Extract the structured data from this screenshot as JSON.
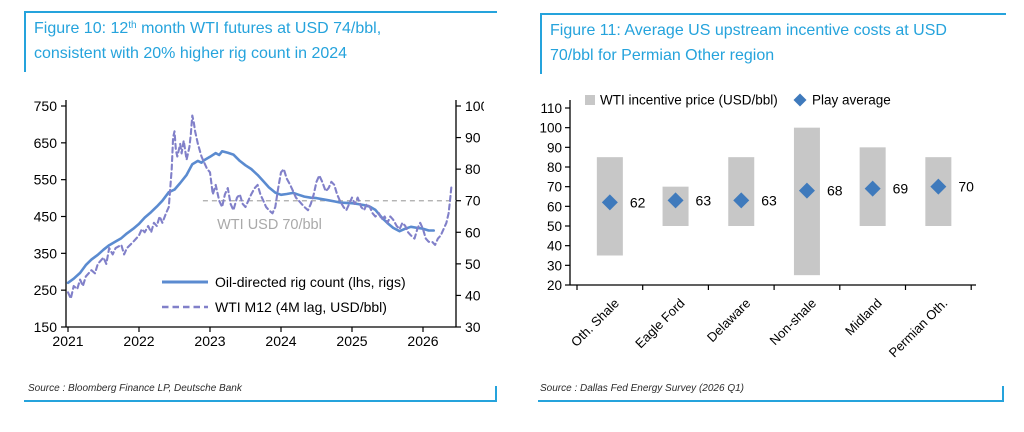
{
  "accent_color": "#25a3dc",
  "figures": [
    {
      "id": "figure-10",
      "title_line1_pre": "Figure 10: 12",
      "title_line1_sup": "th",
      "title_line1_post": " month WTI futures at USD 74/bbl,",
      "title_line2": "consistent with 20% higher rig count in 2024",
      "source": "Source : Bloomberg Finance LP, Deutsche Bank"
    },
    {
      "id": "figure-11",
      "title_line1_pre": "Figure 11: Average US upstream incentive costs at USD",
      "title_line1_sup": "",
      "title_line1_post": "",
      "title_line2": "70/bbl for Permian Other region",
      "source": "Source : Dallas Fed Energy Survey (2026 Q1)"
    }
  ],
  "chart_data": [
    {
      "type": "line",
      "title": "12th month WTI futures vs US oil-directed rig count",
      "x_ticks": [
        2021,
        2022,
        2023,
        2024,
        2025,
        2026
      ],
      "left_axis": {
        "label": "rigs",
        "range": [
          150,
          750
        ],
        "ticks": [
          750,
          650,
          550,
          450,
          350,
          250,
          150
        ]
      },
      "right_axis": {
        "label": "USD/bbl",
        "range": [
          30,
          100
        ],
        "ticks": [
          100,
          90,
          80,
          70,
          60,
          50,
          40,
          30
        ]
      },
      "grid": false,
      "legend_position": "inside-bottom",
      "reference_line": {
        "axis": "right",
        "value": 70,
        "start_x": 2022.9,
        "label": "WTI USD 70/bbl",
        "color": "#a9a9a9"
      },
      "series": [
        {
          "name": "Oil-directed rig count (lhs, rigs)",
          "axis": "left",
          "style": "solid",
          "color": "#5b8bd0",
          "points": [
            [
              2021.0,
              270
            ],
            [
              2021.08,
              281
            ],
            [
              2021.17,
              297
            ],
            [
              2021.25,
              318
            ],
            [
              2021.33,
              333
            ],
            [
              2021.42,
              346
            ],
            [
              2021.5,
              360
            ],
            [
              2021.58,
              372
            ],
            [
              2021.67,
              382
            ],
            [
              2021.75,
              391
            ],
            [
              2021.83,
              404
            ],
            [
              2021.92,
              417
            ],
            [
              2022.0,
              430
            ],
            [
              2022.08,
              447
            ],
            [
              2022.17,
              462
            ],
            [
              2022.25,
              477
            ],
            [
              2022.33,
              493
            ],
            [
              2022.42,
              516
            ],
            [
              2022.5,
              523
            ],
            [
              2022.58,
              541
            ],
            [
              2022.67,
              563
            ],
            [
              2022.75,
              592
            ],
            [
              2022.83,
              601
            ],
            [
              2022.88,
              596
            ],
            [
              2022.92,
              603
            ],
            [
              2023.0,
              612
            ],
            [
              2023.08,
              622
            ],
            [
              2023.13,
              617
            ],
            [
              2023.17,
              627
            ],
            [
              2023.25,
              623
            ],
            [
              2023.33,
              618
            ],
            [
              2023.42,
              601
            ],
            [
              2023.5,
              589
            ],
            [
              2023.58,
              579
            ],
            [
              2023.67,
              563
            ],
            [
              2023.75,
              546
            ],
            [
              2023.83,
              529
            ],
            [
              2023.92,
              515
            ],
            [
              2024.0,
              509
            ],
            [
              2024.08,
              511
            ],
            [
              2024.17,
              514
            ],
            [
              2024.25,
              509
            ],
            [
              2024.33,
              504
            ],
            [
              2024.42,
              501
            ],
            [
              2024.5,
              500
            ],
            [
              2024.58,
              497
            ],
            [
              2024.67,
              494
            ],
            [
              2024.75,
              491
            ],
            [
              2024.83,
              488
            ],
            [
              2024.92,
              487
            ],
            [
              2025.0,
              486
            ],
            [
              2025.08,
              484
            ],
            [
              2025.17,
              481
            ],
            [
              2025.25,
              477
            ],
            [
              2025.33,
              468
            ],
            [
              2025.42,
              447
            ],
            [
              2025.5,
              432
            ],
            [
              2025.58,
              419
            ],
            [
              2025.67,
              410
            ],
            [
              2025.75,
              417
            ],
            [
              2025.83,
              422
            ],
            [
              2025.92,
              419
            ],
            [
              2026.0,
              417
            ],
            [
              2026.08,
              412
            ],
            [
              2026.15,
              412
            ]
          ]
        },
        {
          "name": "WTI M12 (4M lag, USD/bbl)",
          "axis": "right",
          "style": "dashed",
          "color": "#8180c9",
          "points": [
            [
              2021.0,
              41
            ],
            [
              2021.04,
              39
            ],
            [
              2021.08,
              43
            ],
            [
              2021.13,
              42
            ],
            [
              2021.17,
              45
            ],
            [
              2021.21,
              43
            ],
            [
              2021.25,
              46
            ],
            [
              2021.33,
              48
            ],
            [
              2021.38,
              47
            ],
            [
              2021.42,
              50
            ],
            [
              2021.5,
              52
            ],
            [
              2021.54,
              50
            ],
            [
              2021.58,
              55
            ],
            [
              2021.63,
              53
            ],
            [
              2021.67,
              55
            ],
            [
              2021.75,
              56
            ],
            [
              2021.79,
              53
            ],
            [
              2021.83,
              55
            ],
            [
              2021.92,
              57
            ],
            [
              2022.0,
              59
            ],
            [
              2022.04,
              61
            ],
            [
              2022.08,
              60
            ],
            [
              2022.13,
              62
            ],
            [
              2022.17,
              60
            ],
            [
              2022.21,
              63
            ],
            [
              2022.25,
              62
            ],
            [
              2022.29,
              65
            ],
            [
              2022.33,
              63
            ],
            [
              2022.38,
              66
            ],
            [
              2022.42,
              68
            ],
            [
              2022.46,
              80
            ],
            [
              2022.48,
              90
            ],
            [
              2022.5,
              92
            ],
            [
              2022.52,
              86
            ],
            [
              2022.54,
              84
            ],
            [
              2022.58,
              88
            ],
            [
              2022.6,
              85
            ],
            [
              2022.63,
              89
            ],
            [
              2022.67,
              83
            ],
            [
              2022.71,
              87
            ],
            [
              2022.73,
              91
            ],
            [
              2022.75,
              97
            ],
            [
              2022.77,
              95
            ],
            [
              2022.79,
              92
            ],
            [
              2022.83,
              88
            ],
            [
              2022.88,
              84
            ],
            [
              2022.92,
              82
            ],
            [
              2022.96,
              80
            ],
            [
              2023.0,
              79
            ],
            [
              2023.04,
              72
            ],
            [
              2023.08,
              75
            ],
            [
              2023.13,
              70
            ],
            [
              2023.17,
              68
            ],
            [
              2023.21,
              72
            ],
            [
              2023.25,
              74
            ],
            [
              2023.29,
              69
            ],
            [
              2023.33,
              67
            ],
            [
              2023.38,
              71
            ],
            [
              2023.42,
              72
            ],
            [
              2023.46,
              69
            ],
            [
              2023.5,
              68
            ],
            [
              2023.54,
              70
            ],
            [
              2023.58,
              72
            ],
            [
              2023.63,
              74
            ],
            [
              2023.67,
              75
            ],
            [
              2023.71,
              72
            ],
            [
              2023.75,
              70
            ],
            [
              2023.79,
              68
            ],
            [
              2023.83,
              67
            ],
            [
              2023.88,
              66
            ],
            [
              2023.92,
              68
            ],
            [
              2023.96,
              74
            ],
            [
              2024.0,
              79
            ],
            [
              2024.04,
              80
            ],
            [
              2024.08,
              77
            ],
            [
              2024.13,
              75
            ],
            [
              2024.17,
              73
            ],
            [
              2024.21,
              71
            ],
            [
              2024.25,
              70
            ],
            [
              2024.29,
              69
            ],
            [
              2024.33,
              68
            ],
            [
              2024.38,
              67
            ],
            [
              2024.42,
              69
            ],
            [
              2024.46,
              72
            ],
            [
              2024.5,
              76
            ],
            [
              2024.54,
              78
            ],
            [
              2024.58,
              76
            ],
            [
              2024.63,
              73
            ],
            [
              2024.67,
              74
            ],
            [
              2024.71,
              76
            ],
            [
              2024.75,
              75
            ],
            [
              2024.79,
              72
            ],
            [
              2024.83,
              70
            ],
            [
              2024.88,
              68
            ],
            [
              2024.92,
              67
            ],
            [
              2024.96,
              69
            ],
            [
              2025.0,
              71
            ],
            [
              2025.04,
              69
            ],
            [
              2025.08,
              71
            ],
            [
              2025.13,
              68
            ],
            [
              2025.17,
              67
            ],
            [
              2025.21,
              69
            ],
            [
              2025.25,
              68
            ],
            [
              2025.29,
              66
            ],
            [
              2025.33,
              65
            ],
            [
              2025.38,
              66
            ],
            [
              2025.42,
              64
            ],
            [
              2025.46,
              65
            ],
            [
              2025.5,
              63
            ],
            [
              2025.54,
              65
            ],
            [
              2025.58,
              64
            ],
            [
              2025.63,
              62
            ],
            [
              2025.67,
              61
            ],
            [
              2025.71,
              63
            ],
            [
              2025.75,
              62
            ],
            [
              2025.79,
              60
            ],
            [
              2025.83,
              59
            ],
            [
              2025.88,
              58
            ],
            [
              2025.92,
              61
            ],
            [
              2025.96,
              63
            ],
            [
              2026.0,
              61
            ],
            [
              2026.04,
              58
            ],
            [
              2026.08,
              57
            ],
            [
              2026.13,
              57
            ],
            [
              2026.17,
              56
            ],
            [
              2026.21,
              58
            ],
            [
              2026.25,
              59
            ],
            [
              2026.29,
              61
            ],
            [
              2026.33,
              63
            ],
            [
              2026.36,
              66
            ],
            [
              2026.38,
              70
            ],
            [
              2026.4,
              74.5
            ]
          ]
        }
      ]
    },
    {
      "type": "bar",
      "title": "Average US upstream incentive costs",
      "categories": [
        "Oth. Shale",
        "Eagle Ford",
        "Delaware",
        "Non-shale",
        "Midland",
        "Permian Oth."
      ],
      "ylim": [
        20,
        110
      ],
      "y_ticks": [
        110,
        100,
        90,
        80,
        70,
        60,
        50,
        40,
        30,
        20
      ],
      "grid": false,
      "legend_position": "top",
      "series": [
        {
          "name": "WTI incentive price (USD/bbl)",
          "type": "range_bar",
          "color": "#c7c7c7",
          "ranges": [
            [
              35,
              85
            ],
            [
              50,
              70
            ],
            [
              50,
              85
            ],
            [
              25,
              100
            ],
            [
              50,
              90
            ],
            [
              50,
              85
            ]
          ]
        },
        {
          "name": "Play average",
          "type": "diamond",
          "color": "#3f7abc",
          "values": [
            62,
            63,
            63,
            68,
            69,
            70
          ]
        }
      ]
    }
  ]
}
